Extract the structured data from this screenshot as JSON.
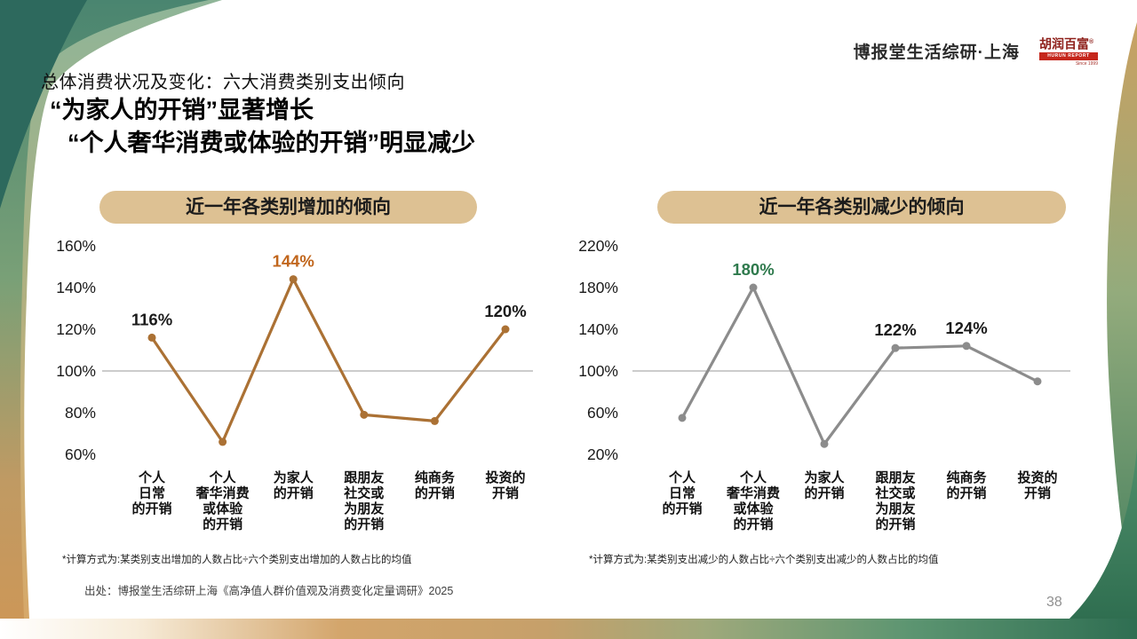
{
  "brand": {
    "header_right": "博报堂生活综研·上海",
    "logo": {
      "cn": "胡润百富",
      "reg": "®",
      "en": "HURUN REPORT",
      "since": "Since 1999"
    }
  },
  "titles": {
    "kicker": "总体消费状况及变化：六大消费类别支出倾向",
    "headline_line1": "“为家人的开销”显著增长",
    "headline_line2": "“个人奢华消费或体验的开销”明显减少"
  },
  "colors": {
    "pill_bg": "#ddc193",
    "increase_line": "#ab7134",
    "increase_label": "#c1661c",
    "decrease_line": "#8c8c8c",
    "decrease_label_green": "#2f7a4d",
    "baseline_gray": "#9a9a9a"
  },
  "chart_data": [
    {
      "type": "line",
      "title": "近一年各类别增加的倾向",
      "categories": [
        [
          "个人",
          "日常",
          "的开销"
        ],
        [
          "个人",
          "奢华消费",
          "或体验",
          "的开销"
        ],
        [
          "为家人",
          "的开销"
        ],
        [
          "跟朋友",
          "社交或",
          "为朋友",
          "的开销"
        ],
        [
          "纯商务",
          "的开销"
        ],
        [
          "投资的",
          "开销"
        ]
      ],
      "values": [
        116,
        66,
        144,
        79,
        76,
        120
      ],
      "shown_labels": [
        "116%",
        null,
        "144%",
        null,
        null,
        "120%"
      ],
      "label_colors": [
        "#1a1a1a",
        null,
        "#c1661c",
        null,
        null,
        "#1a1a1a"
      ],
      "yticks": [
        160,
        140,
        120,
        100,
        80,
        60
      ],
      "ytick_labels": [
        "160%",
        "140%",
        "120%",
        "100%",
        "80%",
        "60%"
      ],
      "ylim": [
        55,
        165
      ],
      "baseline": 100,
      "grid": "baseline-only",
      "legend": "none",
      "line_color": "#ab7134",
      "footnote": "*计算方式为:某类别支出增加的人数占比÷六个类别支出增加的人数占比的均值"
    },
    {
      "type": "line",
      "title": "近一年各类别减少的倾向",
      "categories": [
        [
          "个人",
          "日常",
          "的开销"
        ],
        [
          "个人",
          "奢华消费",
          "或体验",
          "的开销"
        ],
        [
          "为家人",
          "的开销"
        ],
        [
          "跟朋友",
          "社交或",
          "为朋友",
          "的开销"
        ],
        [
          "纯商务",
          "的开销"
        ],
        [
          "投资的",
          "开销"
        ]
      ],
      "values": [
        55,
        180,
        30,
        122,
        124,
        90
      ],
      "shown_labels": [
        null,
        "180%",
        null,
        "122%",
        "124%",
        null
      ],
      "label_colors": [
        null,
        "#2f7a4d",
        null,
        "#1a1a1a",
        "#1a1a1a",
        null
      ],
      "yticks": [
        220,
        180,
        140,
        100,
        60,
        20
      ],
      "ytick_labels": [
        "220%",
        "180%",
        "140%",
        "100%",
        "60%",
        "20%"
      ],
      "ylim": [
        15,
        230
      ],
      "baseline": 100,
      "grid": "baseline-only",
      "legend": "none",
      "line_color": "#8c8c8c",
      "footnote": "*计算方式为:某类别支出减少的人数占比÷六个类别支出减少的人数占比的均值"
    }
  ],
  "footer": {
    "source": "出处：博报堂生活综研上海《高净值人群价值观及消费变化定量调研》2025",
    "page_number": "38"
  }
}
